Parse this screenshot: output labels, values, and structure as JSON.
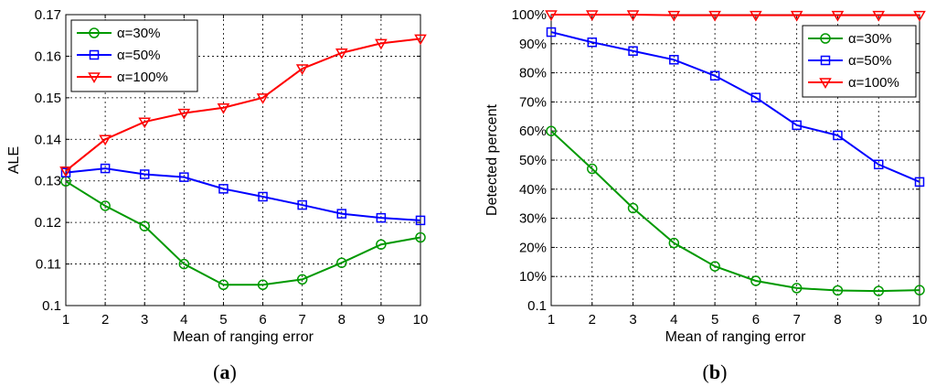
{
  "chart_data": [
    {
      "type": "line",
      "caption_open": "(",
      "caption_letter": "a",
      "caption_close": ")",
      "xlabel": "Mean of ranging error",
      "ylabel": "ALE",
      "xlim": [
        1,
        10
      ],
      "ylim": [
        0.1,
        0.17
      ],
      "x_ticks": [
        "1",
        "2",
        "3",
        "4",
        "5",
        "6",
        "7",
        "8",
        "9",
        "10"
      ],
      "y_ticks": [
        "0.1",
        "0.11",
        "0.12",
        "0.13",
        "0.14",
        "0.15",
        "0.16",
        "0.17"
      ],
      "grid": true,
      "legend_position": "top-left",
      "x": [
        1,
        2,
        3,
        4,
        5,
        6,
        7,
        8,
        9,
        10
      ],
      "series": [
        {
          "name": "α=30%",
          "color": "#009900",
          "marker": "circle",
          "values": [
            0.1299,
            0.124,
            0.1191,
            0.11,
            0.105,
            0.105,
            0.1063,
            0.1103,
            0.1147,
            0.1164
          ]
        },
        {
          "name": "α=50%",
          "color": "#0000ff",
          "marker": "square",
          "values": [
            0.132,
            0.133,
            0.1316,
            0.1309,
            0.1281,
            0.1262,
            0.1242,
            0.1221,
            0.1211,
            0.1205
          ]
        },
        {
          "name": "α=100%",
          "color": "#ff0000",
          "marker": "triangle-down",
          "values": [
            0.1324,
            0.14,
            0.1442,
            0.1463,
            0.1476,
            0.15,
            0.157,
            0.1608,
            0.1631,
            0.1642
          ]
        }
      ]
    },
    {
      "type": "line",
      "caption_open": "(",
      "caption_letter": "b",
      "caption_close": ")",
      "xlabel": "Mean of ranging error",
      "ylabel": "Detected percent",
      "xlim": [
        1,
        10
      ],
      "ylim": [
        0,
        100
      ],
      "x_ticks": [
        "1",
        "2",
        "3",
        "4",
        "5",
        "6",
        "7",
        "8",
        "9",
        "10"
      ],
      "y_ticks": [
        "0.1",
        "10%",
        "20%",
        "30%",
        "40%",
        "50%",
        "60%",
        "70%",
        "80%",
        "90%",
        "100%"
      ],
      "grid": true,
      "legend_position": "top-right",
      "x": [
        1,
        2,
        3,
        4,
        5,
        6,
        7,
        8,
        9,
        10
      ],
      "series": [
        {
          "name": "α=30%",
          "color": "#009900",
          "marker": "circle",
          "values": [
            60,
            47,
            33.5,
            21.5,
            13.5,
            8.5,
            6,
            5.2,
            5,
            5.3
          ]
        },
        {
          "name": "α=50%",
          "color": "#0000ff",
          "marker": "square",
          "values": [
            94,
            90.5,
            87.5,
            84.5,
            79,
            71.5,
            62,
            58.5,
            48.5,
            42.5
          ]
        },
        {
          "name": "α=100%",
          "color": "#ff0000",
          "marker": "triangle-down",
          "values": [
            100,
            100,
            100,
            99.8,
            99.8,
            99.8,
            99.8,
            99.8,
            99.8,
            99.8
          ]
        }
      ]
    }
  ]
}
